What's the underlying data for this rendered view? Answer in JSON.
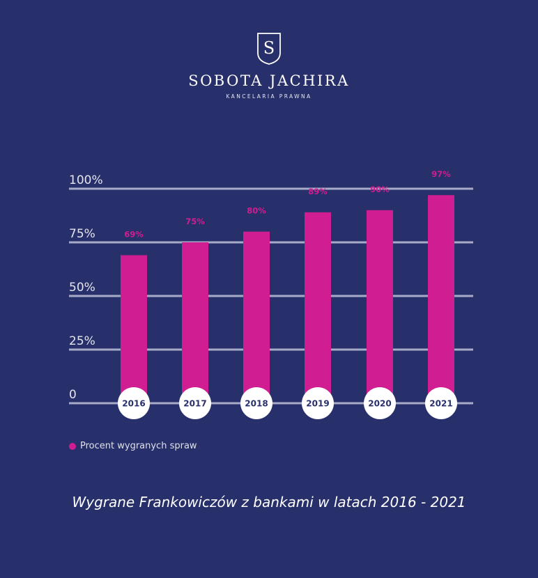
{
  "brand": {
    "logo_letter": "S",
    "name": "SOBOTA JACHIRA",
    "subtitle": "KANCELARIA PRAWNA",
    "logo_icon": "shield-s-icon"
  },
  "colors": {
    "background": "#28306b",
    "bar": "#d01d91",
    "label": "#d01d91",
    "gridline": "#a8abc8",
    "year_circle": "#ffffff",
    "year_text": "#28306b"
  },
  "chart_data": {
    "type": "bar",
    "categories": [
      "2016",
      "2017",
      "2018",
      "2019",
      "2020",
      "2021"
    ],
    "series": [
      {
        "name": "Procent wygranych spraw",
        "values": [
          69,
          75,
          80,
          89,
          90,
          97
        ]
      }
    ],
    "data_labels": [
      "69%",
      "75%",
      "80%",
      "89%",
      "90%",
      "97%"
    ],
    "yticks": [
      {
        "value": 0,
        "label": "0"
      },
      {
        "value": 25,
        "label": "25%"
      },
      {
        "value": 50,
        "label": "50%"
      },
      {
        "value": 75,
        "label": "75%"
      },
      {
        "value": 100,
        "label": "100%"
      }
    ],
    "ylim": [
      0,
      100
    ],
    "grid": true,
    "legend": "bottom-left",
    "title": "Wygrane Frankowiczów z bankami w latach 2016 - 2021"
  }
}
